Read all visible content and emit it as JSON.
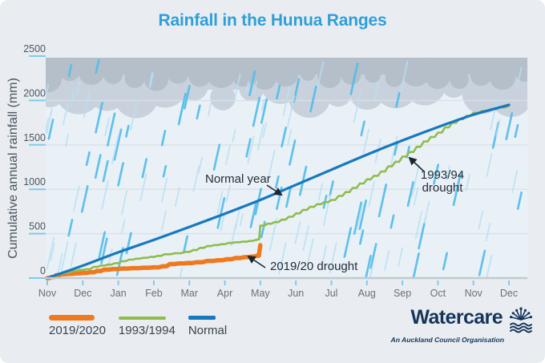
{
  "title": "Rainfall in the Hunua Ranges",
  "y_axis_title": "Cumulative annual rainfall (mm)",
  "legend": [
    {
      "label": "2019/2020",
      "color": "#F0791E"
    },
    {
      "label": "1993/1994",
      "color": "#8FBC4C"
    },
    {
      "label": "Normal",
      "color": "#1878BE"
    }
  ],
  "logo": {
    "name": "Watercare",
    "tagline": "An Auckland Council Organisation",
    "color": "#15355B"
  },
  "theme": {
    "background": "#E9EDF1",
    "plot_background": "#E9F1F7",
    "title_color": "#2E9FD8",
    "grid_color": "#D9E0E6",
    "axis_color": "#C2C9D0",
    "tick_color": "#7ECBEC",
    "axis_label_color": "#4A5763",
    "month_label_color": "#67717C",
    "annotation_color": "#242D38",
    "cloud_dark": "#B4BFCA",
    "cloud_light": "#C9D2DC",
    "rain_bright": "#55BDE9",
    "rain_pale": "#B9DFF3"
  },
  "chart_data": {
    "type": "line",
    "title": "Rainfall in the Hunua Ranges",
    "xlabel": "",
    "ylabel": "Cumulative annual rainfall (mm)",
    "x_unit": "months from November (index 0) to December of following year (index 13)",
    "y_unit": "mm",
    "x_tick_labels": [
      "Nov",
      "Dec",
      "Jan",
      "Feb",
      "Mar",
      "Apr",
      "May",
      "Jun",
      "Jul",
      "Aug",
      "Sep",
      "Oct",
      "Nov",
      "Dec"
    ],
    "y_ticks": [
      0,
      500,
      1000,
      1500,
      2000,
      2500
    ],
    "ylim": [
      0,
      2500
    ],
    "grid": "horizontal",
    "legend_position": "bottom-left",
    "series": [
      {
        "name": "2019/2020",
        "color": "#F0791E",
        "stroke_width": 5.5,
        "line_style": "stepped",
        "points": [
          [
            0,
            0
          ],
          [
            0.12,
            12
          ],
          [
            0.25,
            32
          ],
          [
            0.4,
            42
          ],
          [
            0.6,
            48
          ],
          [
            0.8,
            53
          ],
          [
            1.0,
            58
          ],
          [
            1.2,
            65
          ],
          [
            1.4,
            80
          ],
          [
            1.6,
            95
          ],
          [
            1.85,
            102
          ],
          [
            2.1,
            107
          ],
          [
            2.4,
            112
          ],
          [
            2.7,
            116
          ],
          [
            3.0,
            121
          ],
          [
            3.25,
            133
          ],
          [
            3.45,
            158
          ],
          [
            3.7,
            164
          ],
          [
            3.95,
            170
          ],
          [
            4.2,
            178
          ],
          [
            4.5,
            193
          ],
          [
            4.8,
            200
          ],
          [
            5.05,
            212
          ],
          [
            5.3,
            226
          ],
          [
            5.55,
            236
          ],
          [
            5.75,
            242
          ],
          [
            5.9,
            252
          ],
          [
            6.0,
            370
          ]
        ]
      },
      {
        "name": "1993/1994",
        "color": "#8FBC4C",
        "stroke_width": 2.6,
        "line_style": "stepped",
        "points": [
          [
            0,
            0
          ],
          [
            0.2,
            30
          ],
          [
            0.35,
            50
          ],
          [
            0.5,
            58
          ],
          [
            0.7,
            80
          ],
          [
            0.9,
            92
          ],
          [
            1.1,
            100
          ],
          [
            1.3,
            125
          ],
          [
            1.5,
            140
          ],
          [
            1.7,
            152
          ],
          [
            1.9,
            168
          ],
          [
            2.1,
            190
          ],
          [
            2.3,
            208
          ],
          [
            2.5,
            218
          ],
          [
            2.7,
            228
          ],
          [
            2.9,
            238
          ],
          [
            3.1,
            250
          ],
          [
            3.3,
            268
          ],
          [
            3.6,
            280
          ],
          [
            3.9,
            295
          ],
          [
            4.1,
            315
          ],
          [
            4.3,
            340
          ],
          [
            4.5,
            360
          ],
          [
            4.7,
            372
          ],
          [
            4.9,
            382
          ],
          [
            5.1,
            395
          ],
          [
            5.3,
            403
          ],
          [
            5.5,
            410
          ],
          [
            5.7,
            418
          ],
          [
            5.85,
            428
          ],
          [
            5.92,
            435
          ],
          [
            6.0,
            590
          ],
          [
            6.2,
            612
          ],
          [
            6.4,
            630
          ],
          [
            6.6,
            658
          ],
          [
            6.8,
            690
          ],
          [
            7.0,
            728
          ],
          [
            7.2,
            768
          ],
          [
            7.4,
            802
          ],
          [
            7.6,
            832
          ],
          [
            7.8,
            856
          ],
          [
            8.0,
            880
          ],
          [
            8.2,
            925
          ],
          [
            8.4,
            968
          ],
          [
            8.6,
            1015
          ],
          [
            8.8,
            1065
          ],
          [
            9.0,
            1112
          ],
          [
            9.2,
            1152
          ],
          [
            9.4,
            1200
          ],
          [
            9.6,
            1258
          ],
          [
            9.8,
            1310
          ],
          [
            10.0,
            1368
          ],
          [
            10.2,
            1420
          ],
          [
            10.4,
            1478
          ],
          [
            10.6,
            1538
          ],
          [
            10.8,
            1588
          ],
          [
            11.0,
            1638
          ],
          [
            11.2,
            1698
          ],
          [
            11.4,
            1748
          ],
          [
            11.6,
            1790
          ],
          [
            11.8,
            1828
          ],
          [
            12.0,
            1860
          ],
          [
            12.25,
            1882
          ],
          [
            12.5,
            1902
          ],
          [
            12.75,
            1922
          ],
          [
            13,
            1942
          ]
        ]
      },
      {
        "name": "Normal",
        "color": "#1878BE",
        "stroke_width": 3.2,
        "line_style": "smooth",
        "points": [
          [
            0,
            0
          ],
          [
            1,
            140
          ],
          [
            2,
            290
          ],
          [
            3,
            430
          ],
          [
            4,
            575
          ],
          [
            5,
            725
          ],
          [
            6,
            880
          ],
          [
            7,
            1050
          ],
          [
            8,
            1220
          ],
          [
            9,
            1390
          ],
          [
            10,
            1550
          ],
          [
            11,
            1700
          ],
          [
            12,
            1840
          ],
          [
            13,
            1950
          ]
        ]
      }
    ],
    "annotations": [
      {
        "text": "Normal year",
        "points_to": "Normal"
      },
      {
        "text": "1993/94 drought",
        "points_to": "1993/1994"
      },
      {
        "text": "2019/20 drought",
        "points_to": "2019/2020"
      }
    ]
  }
}
